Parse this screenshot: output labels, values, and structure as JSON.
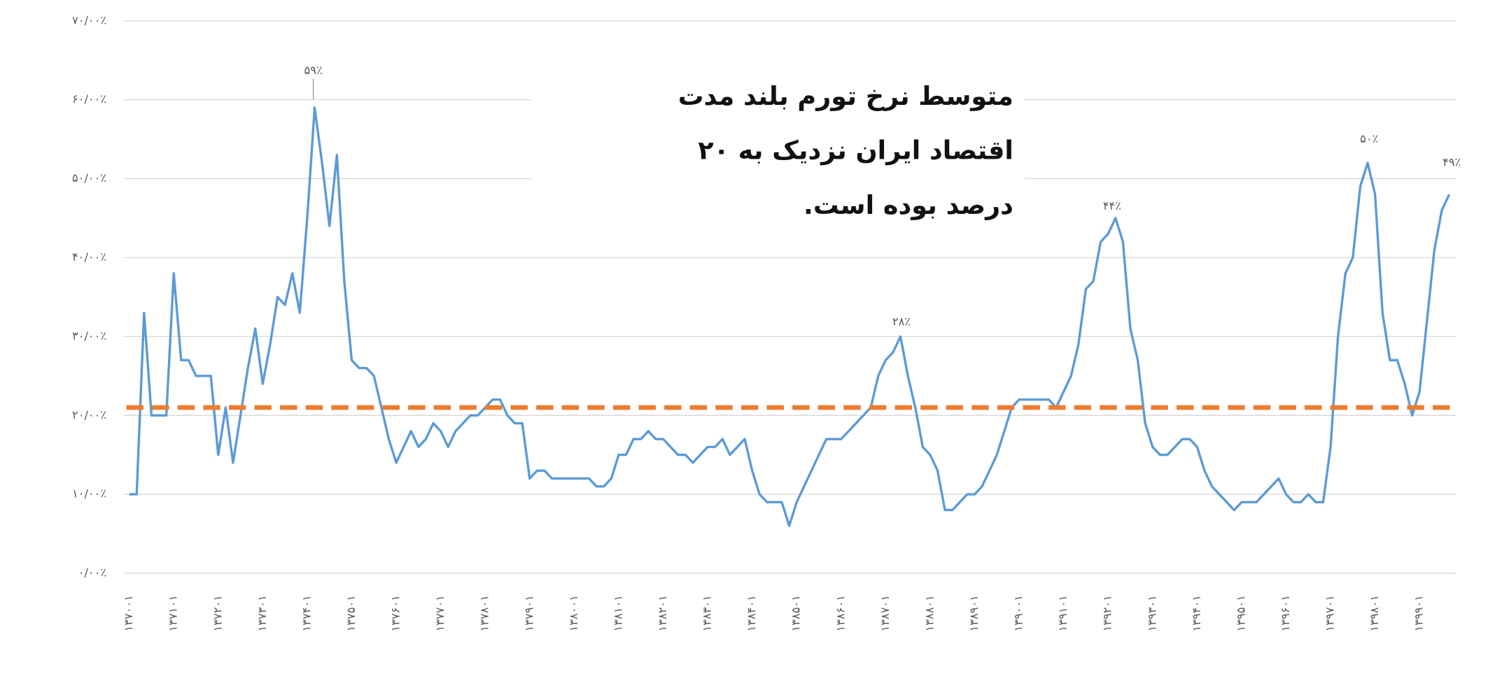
{
  "chart_data": {
    "type": "line",
    "categories": [
      "۱۳۷۰۰۱",
      null,
      null,
      null,
      null,
      null,
      "۱۳۷۱۰۱",
      null,
      null,
      null,
      null,
      null,
      "۱۳۷۲۰۱",
      null,
      null,
      null,
      null,
      null,
      "۱۳۷۳۰۱",
      null,
      null,
      null,
      null,
      null,
      "۱۳۷۴۰۱",
      null,
      null,
      null,
      null,
      null,
      "۱۳۷۵۰۱",
      null,
      null,
      null,
      null,
      null,
      "۱۳۷۶۰۱",
      null,
      null,
      null,
      null,
      null,
      "۱۳۷۷۰۱",
      null,
      null,
      null,
      null,
      null,
      "۱۳۷۸۰۱",
      null,
      null,
      null,
      null,
      null,
      "۱۳۷۹۰۱",
      null,
      null,
      null,
      null,
      null,
      "۱۳۸۰۰۱",
      null,
      null,
      null,
      null,
      null,
      "۱۳۸۱۰۱",
      null,
      null,
      null,
      null,
      null,
      "۱۳۸۲۰۱",
      null,
      null,
      null,
      null,
      null,
      "۱۳۸۳۰۱",
      null,
      null,
      null,
      null,
      null,
      "۱۳۸۴۰۱",
      null,
      null,
      null,
      null,
      null,
      "۱۳۸۵۰۱",
      null,
      null,
      null,
      null,
      null,
      "۱۳۸۶۰۱",
      null,
      null,
      null,
      null,
      null,
      "۱۳۸۷۰۱",
      null,
      null,
      null,
      null,
      null,
      "۱۳۸۸۰۱",
      null,
      null,
      null,
      null,
      null,
      "۱۳۸۹۰۱",
      null,
      null,
      null,
      null,
      null,
      "۱۳۹۰۰۱",
      null,
      null,
      null,
      null,
      null,
      "۱۳۹۱۰۱",
      null,
      null,
      null,
      null,
      null,
      "۱۳۹۲۰۱",
      null,
      null,
      null,
      null,
      null,
      "۱۳۹۳۰۱",
      null,
      null,
      null,
      null,
      null,
      "۱۳۹۴۰۱",
      null,
      null,
      null,
      null,
      null,
      "۱۳۹۵۰۱",
      null,
      null,
      null,
      null,
      null,
      "۱۳۹۶۰۱",
      null,
      null,
      null,
      null,
      null,
      "۱۳۹۷۰۱",
      null,
      null,
      null,
      null,
      null,
      "۱۳۹۸۰۱",
      null,
      null,
      null,
      null,
      null,
      "۱۳۹۹۰۱",
      null,
      null,
      null,
      null
    ],
    "series": [
      {
        "color": "#5b9bd5",
        "values": [
          10,
          10,
          33,
          20,
          20,
          20,
          38,
          27,
          27,
          25,
          25,
          25,
          15,
          21,
          14,
          20,
          26,
          31,
          24,
          29,
          35,
          34,
          38,
          33,
          45,
          59,
          52,
          44,
          53,
          37,
          27,
          26,
          26,
          25,
          21,
          17,
          14,
          16,
          18,
          16,
          17,
          19,
          18,
          16,
          18,
          19,
          20,
          20,
          21,
          22,
          22,
          20,
          19,
          19,
          12,
          13,
          13,
          12,
          12,
          12,
          12,
          12,
          12,
          11,
          11,
          12,
          15,
          15,
          17,
          17,
          18,
          17,
          17,
          16,
          15,
          15,
          14,
          15,
          16,
          16,
          17,
          15,
          16,
          17,
          13,
          10,
          9,
          9,
          9,
          6,
          9,
          11,
          13,
          15,
          17,
          17,
          17,
          18,
          19,
          20,
          21,
          25,
          27,
          28,
          30,
          25,
          21,
          16,
          15,
          13,
          8,
          8,
          9,
          10,
          10,
          11,
          13,
          15,
          18,
          21,
          22,
          22,
          22,
          22,
          22,
          21,
          23,
          25,
          29,
          36,
          37,
          42,
          43,
          45,
          42,
          31,
          27,
          19,
          16,
          15,
          15,
          16,
          17,
          17,
          16,
          13,
          11,
          10,
          9,
          8,
          9,
          9,
          9,
          10,
          11,
          12,
          10,
          9,
          9,
          10,
          9,
          9,
          16,
          30,
          38,
          40,
          49,
          52,
          48,
          33,
          27,
          27,
          24,
          20,
          23,
          32,
          41,
          46,
          48
        ]
      }
    ],
    "reference_line": {
      "value": 21,
      "color": "#ed7d31",
      "dashed": true
    },
    "ylim": [
      0,
      70
    ],
    "yticks": [
      {
        "value": 0,
        "label": "۰/۰۰٪"
      },
      {
        "value": 10,
        "label": "۱۰/۰۰٪"
      },
      {
        "value": 20,
        "label": "۲۰/۰۰٪"
      },
      {
        "value": 30,
        "label": "۳۰/۰۰٪"
      },
      {
        "value": 40,
        "label": "۴۰/۰۰٪"
      },
      {
        "value": 50,
        "label": "۵۰/۰۰٪"
      },
      {
        "value": 60,
        "label": "۶۰/۰۰٪"
      },
      {
        "value": 70,
        "label": "۷۰/۰۰٪"
      }
    ],
    "grid": true,
    "annotations": [
      "۵۹٪",
      "۲۸٪",
      "۴۴٪",
      "۵۰٪",
      "۴۹٪"
    ],
    "note_lines": [
      "متوسط نرخ تورم بلند مدت",
      "اقتصاد ایران نزدیک به ۲۰",
      "درصد بوده است."
    ]
  }
}
